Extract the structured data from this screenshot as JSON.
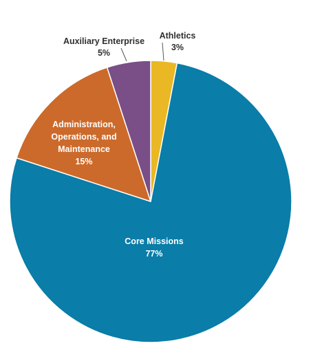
{
  "chart_data": {
    "type": "pie",
    "start_angle_deg": 0,
    "direction": "clockwise",
    "slices": [
      {
        "key": "athletics",
        "label": "Athletics",
        "value": 3,
        "value_label": "3%",
        "color": "#E9B824",
        "label_color": "#2f2f2f",
        "label_position": "outside",
        "leader_line": true
      },
      {
        "key": "core-missions",
        "label": "Core Missions",
        "value": 77,
        "value_label": "77%",
        "color": "#0A7DA8",
        "label_color": "#ffffff",
        "label_position": "inside"
      },
      {
        "key": "administration",
        "label": "Administration,\nOperations, and\nMaintenance",
        "value": 15,
        "value_label": "15%",
        "color": "#CC6A2B",
        "label_color": "#ffffff",
        "label_position": "inside"
      },
      {
        "key": "auxiliary-enterprise",
        "label": "Auxiliary Enterprise",
        "value": 5,
        "value_label": "5%",
        "color": "#7A4E87",
        "label_color": "#2f2f2f",
        "label_position": "outside",
        "leader_line": true
      }
    ],
    "title": "",
    "legend": "none"
  }
}
